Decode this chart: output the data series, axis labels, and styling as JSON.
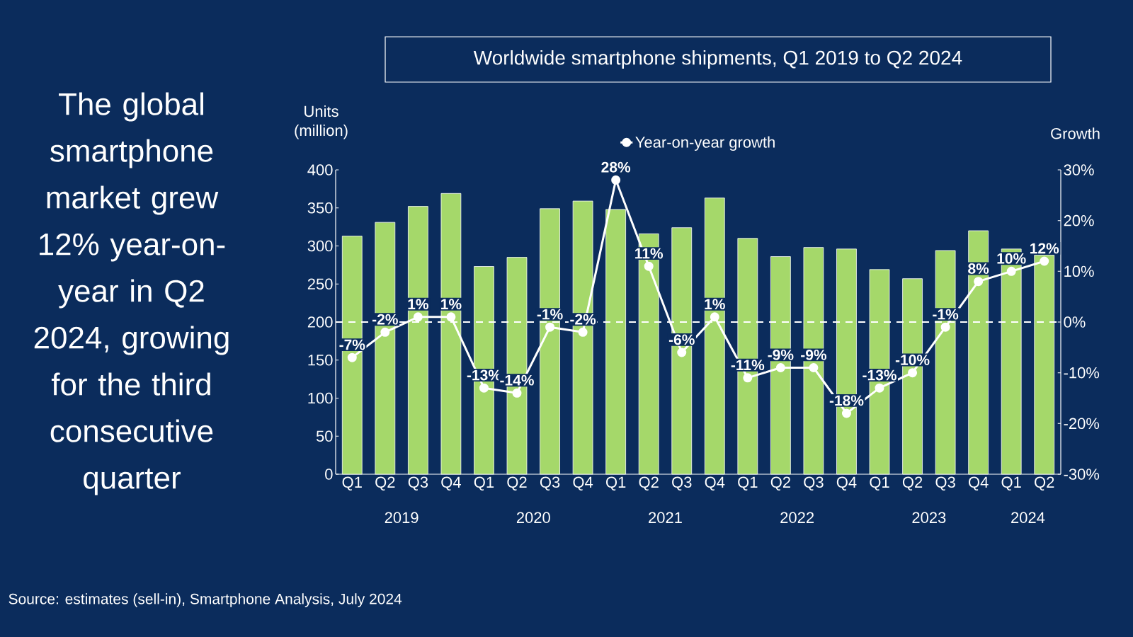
{
  "chart_data": {
    "type": "bar",
    "title": "Worldwide smartphone shipments, Q1 2019 to Q2 2024",
    "ylabel": "Units (million)",
    "y2label": "Growth",
    "categories": [
      "Q1",
      "Q2",
      "Q3",
      "Q4",
      "Q1",
      "Q2",
      "Q3",
      "Q4",
      "Q1",
      "Q2",
      "Q3",
      "Q4",
      "Q1",
      "Q2",
      "Q3",
      "Q4",
      "Q1",
      "Q2",
      "Q3",
      "Q4",
      "Q1",
      "Q2"
    ],
    "series": [
      {
        "color": "#a5d86a",
        "values": [
          313,
          331,
          352,
          369,
          273,
          285,
          349,
          359,
          348,
          316,
          324,
          363,
          310,
          286,
          298,
          296,
          269,
          257,
          294,
          320,
          296,
          288
        ]
      },
      {
        "type": "line",
        "name": "Year-on-year growth",
        "color": "#ffffff",
        "axis": "y2",
        "marker": "circle",
        "values": [
          -7,
          -2,
          1,
          1,
          -13,
          -14,
          -1,
          -2,
          28,
          11,
          -6,
          1,
          -11,
          -9,
          -9,
          -18,
          -13,
          -10,
          -1,
          8,
          10,
          12
        ],
        "value_labels": [
          "-7%",
          "-2%",
          "1%",
          "1%",
          "-13%",
          "-14%",
          "-1%",
          "-2%",
          "28%",
          "11%",
          "-6%",
          "1%",
          "-11%",
          "-9%",
          "-9%",
          "-18%",
          "-13%",
          "-10%",
          "-1%",
          "8%",
          "10%",
          "12%"
        ]
      }
    ],
    "ylim": [
      0,
      400
    ],
    "yticks": [
      0,
      50,
      100,
      150,
      200,
      250,
      300,
      350,
      400
    ],
    "y2lim": [
      -30,
      30
    ],
    "y2ticks": [
      {
        "value": -30,
        "label": "-30%"
      },
      {
        "value": -20,
        "label": "-20%"
      },
      {
        "value": -10,
        "label": "-10%"
      },
      {
        "value": 0,
        "label": "0%"
      },
      {
        "value": 10,
        "label": "10%"
      },
      {
        "value": 20,
        "label": "20%"
      },
      {
        "value": 30,
        "label": "30%"
      }
    ],
    "ref_lines": [
      {
        "axis": "y2",
        "value": 0,
        "color": "#ffffff",
        "line_style": "dashed"
      }
    ],
    "legend": "top",
    "annotations": [
      "The global smartphone market grew 12% year-on-year in Q2 2024, growing for the third consecutive quarter",
      "Source: estimates (sell-in), Smartphone Analysis, July 2024",
      "2019",
      "2020",
      "2021",
      "2022",
      "2023",
      "2024"
    ]
  }
}
